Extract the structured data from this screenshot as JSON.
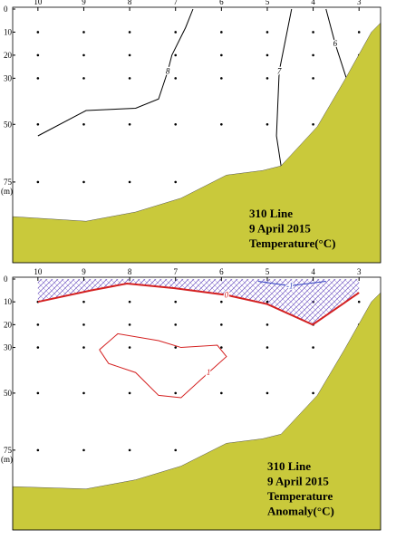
{
  "chart_data": [
    {
      "type": "contour",
      "title_lines": [
        "310 Line",
        "9 April 2015",
        "Temperature(°C)"
      ],
      "ylabel": "(m)",
      "xlim": [
        10.55,
        2.53
      ],
      "ylim": [
        0,
        110
      ],
      "xticks": [
        10,
        9,
        8,
        7,
        6,
        5,
        4,
        3
      ],
      "yticks": [
        0,
        10,
        20,
        30,
        50,
        75
      ],
      "bottom": {
        "color": "#c9c93b",
        "x": [
          10.55,
          8.95,
          7.87,
          6.88,
          5.89,
          5.1,
          4.7,
          3.91,
          3.32,
          2.73,
          2.53
        ],
        "y": [
          90,
          92,
          88,
          82,
          72,
          70,
          68,
          51,
          31,
          10,
          6
        ]
      },
      "contours": [
        {
          "label": "8",
          "color": "#000000",
          "x": [
            10.0,
            8.95,
            7.87,
            7.37,
            7.17,
            7.08,
            6.78,
            6.62
          ],
          "y": [
            55,
            44,
            43,
            39,
            27,
            20,
            8,
            0
          ]
        },
        {
          "label": "7",
          "color": "#000000",
          "x": [
            4.7,
            4.8,
            4.74,
            4.55,
            4.47
          ],
          "y": [
            68,
            55,
            27,
            8,
            0
          ]
        },
        {
          "label": "6",
          "color": "#000000",
          "x": [
            3.72,
            3.52,
            3.26
          ],
          "y": [
            0,
            15,
            31
          ]
        }
      ]
    },
    {
      "type": "contour",
      "title_lines": [
        "310 Line",
        "9 April 2015",
        "Temperature",
        "Anomaly(°C)"
      ],
      "ylabel": "(m)",
      "xlim": [
        10.55,
        2.53
      ],
      "ylim": [
        0,
        110
      ],
      "xticks": [
        10,
        9,
        8,
        7,
        6,
        5,
        4,
        3
      ],
      "yticks": [
        0,
        10,
        20,
        30,
        50,
        75
      ],
      "bottom": {
        "color": "#c9c93b",
        "x": [
          10.55,
          8.95,
          7.87,
          6.88,
          5.89,
          5.1,
          4.7,
          3.91,
          3.32,
          2.73,
          2.53
        ],
        "y": [
          91,
          92,
          88,
          82,
          72,
          70,
          68,
          51,
          31,
          10,
          6
        ]
      },
      "contours": [
        {
          "label": "0",
          "color": "#d42020",
          "shade_above": true,
          "x": [
            10.0,
            8.85,
            8.06,
            7.02,
            5.89,
            5.0,
            4.01,
            3.0
          ],
          "y": [
            10,
            5,
            2,
            4,
            7,
            11,
            20,
            6
          ]
        },
        {
          "label": "-1",
          "color": "#3040c0",
          "x": [
            5.2,
            4.51,
            3.72
          ],
          "y": [
            1,
            3,
            1
          ]
        },
        {
          "label": "1",
          "color": "#d42020",
          "x": [
            8.66,
            8.26,
            7.37,
            6.88,
            6.09,
            5.89,
            6.28,
            6.88,
            7.37,
            7.87,
            8.46,
            8.66
          ],
          "y": [
            31,
            24,
            27,
            30,
            29,
            34,
            41,
            52,
            51,
            41,
            37,
            31
          ]
        }
      ]
    }
  ]
}
